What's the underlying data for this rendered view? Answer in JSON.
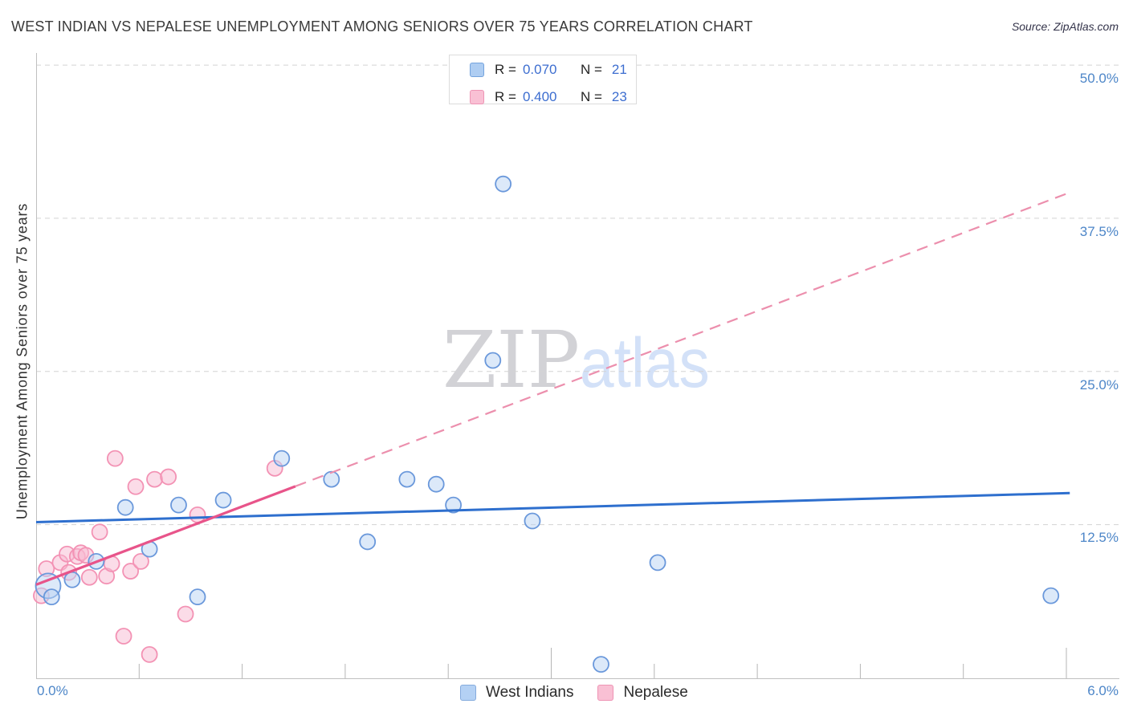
{
  "title": "WEST INDIAN VS NEPALESE UNEMPLOYMENT AMONG SENIORS OVER 75 YEARS CORRELATION CHART",
  "source": "Source: ZipAtlas.com",
  "y_axis_label": "Unemployment Among Seniors over 75 years",
  "watermark": {
    "zip": "ZIP",
    "atlas": "atlas"
  },
  "legend_box": {
    "rows": [
      {
        "r_label": "R =",
        "r_value": "0.070",
        "n_label": "N =",
        "n_value": "21"
      },
      {
        "r_label": "R =",
        "r_value": "0.400",
        "n_label": "N =",
        "n_value": "23"
      }
    ]
  },
  "axis": {
    "x_min_label": "0.0%",
    "x_max_label": "6.0%",
    "y_ticks": [
      {
        "label": "50.0%",
        "value": 50
      },
      {
        "label": "37.5%",
        "value": 37.5
      },
      {
        "label": "25.0%",
        "value": 25
      },
      {
        "label": "12.5%",
        "value": 12.5
      }
    ]
  },
  "bottom_legend": [
    {
      "label": "West Indians",
      "color": "blue"
    },
    {
      "label": "Nepalese",
      "color": "pink"
    }
  ],
  "colors": {
    "blue_fill": "#b9d3f3",
    "blue_stroke": "#6a98db",
    "pink_fill": "#f8b9d2",
    "pink_stroke": "#f392b4",
    "blue_trend": "#2e6fce",
    "pink_trend": "#e8548a",
    "pink_trend_dashed": "#ec8fad",
    "grid": "#d3d3d3",
    "axis": "#c0c0c0",
    "tick_label_blue": "#4d86c8"
  },
  "chart_data": {
    "type": "scatter",
    "x_range": [
      0,
      6
    ],
    "y_range": [
      0,
      51
    ],
    "x_unit": "%",
    "y_unit": "%",
    "series": [
      {
        "name": "West Indians",
        "points": [
          [
            0.07,
            7.5,
            15.5
          ],
          [
            0.09,
            6.6
          ],
          [
            0.21,
            8.0
          ],
          [
            0.35,
            9.5
          ],
          [
            0.52,
            13.9
          ],
          [
            0.66,
            10.5
          ],
          [
            0.83,
            14.1
          ],
          [
            0.94,
            6.6
          ],
          [
            1.09,
            14.5
          ],
          [
            1.43,
            17.9
          ],
          [
            1.72,
            16.2
          ],
          [
            1.93,
            11.1
          ],
          [
            2.16,
            16.2
          ],
          [
            2.33,
            15.8
          ],
          [
            2.43,
            14.1
          ],
          [
            2.66,
            25.9
          ],
          [
            2.72,
            40.3
          ],
          [
            2.89,
            12.8
          ],
          [
            3.29,
            1.1
          ],
          [
            3.62,
            9.4
          ],
          [
            5.91,
            6.7
          ]
        ]
      },
      {
        "name": "Nepalese",
        "points": [
          [
            0.03,
            6.7
          ],
          [
            0.06,
            8.9
          ],
          [
            0.14,
            9.4
          ],
          [
            0.18,
            10.1
          ],
          [
            0.19,
            8.6
          ],
          [
            0.24,
            9.9
          ],
          [
            0.26,
            10.2
          ],
          [
            0.29,
            10.0
          ],
          [
            0.31,
            8.2
          ],
          [
            0.37,
            11.9
          ],
          [
            0.41,
            8.3
          ],
          [
            0.44,
            9.3
          ],
          [
            0.46,
            17.9
          ],
          [
            0.51,
            3.4
          ],
          [
            0.55,
            8.7
          ],
          [
            0.58,
            15.6
          ],
          [
            0.61,
            9.5
          ],
          [
            0.66,
            1.9
          ],
          [
            0.69,
            16.2
          ],
          [
            0.77,
            16.4
          ],
          [
            0.87,
            5.2
          ],
          [
            0.94,
            13.3
          ],
          [
            1.39,
            17.1
          ]
        ]
      }
    ],
    "trend_lines": [
      {
        "series": "West Indians",
        "x0": 0,
        "y0": 12.7,
        "x1": 6.02,
        "y1": 15.08,
        "style": "solid"
      },
      {
        "series": "Nepalese",
        "x0": 0,
        "y0": 7.6,
        "x1": 6.0,
        "y1": 39.5,
        "solid_until_x": 1.51
      }
    ]
  }
}
